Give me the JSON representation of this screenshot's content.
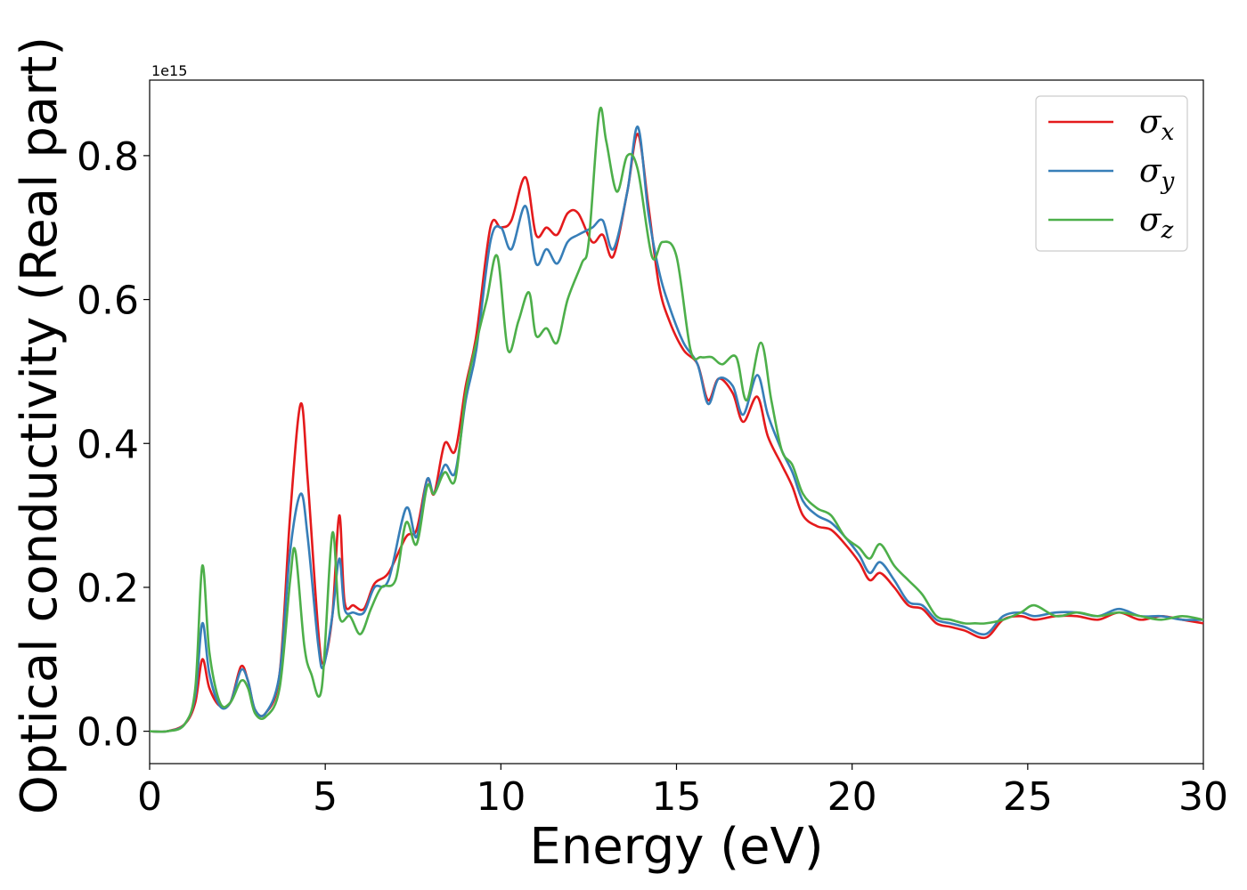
{
  "chart_data": {
    "type": "line",
    "xlabel": "Energy (eV)",
    "ylabel": "Optical conductivity (Real part)",
    "y_offset_label": "1e15",
    "xlim": [
      0,
      30
    ],
    "ylim": [
      -0.045,
      0.905
    ],
    "xticks": [
      0,
      5,
      10,
      15,
      20,
      25,
      30
    ],
    "xtick_labels": [
      "0",
      "5",
      "10",
      "15",
      "20",
      "25",
      "30"
    ],
    "yticks": [
      0.0,
      0.2,
      0.4,
      0.6,
      0.8
    ],
    "ytick_labels": [
      "0.0",
      "0.2",
      "0.4",
      "0.6",
      "0.8"
    ],
    "grid": false,
    "legend_position": "top-right",
    "series": [
      {
        "name": "σx",
        "symbol": "σ",
        "subscript": "x",
        "color": "#e41a1c",
        "points": [
          [
            0,
            0.0
          ],
          [
            0.5,
            0.0
          ],
          [
            1.0,
            0.01
          ],
          [
            1.3,
            0.04
          ],
          [
            1.5,
            0.1
          ],
          [
            1.7,
            0.06
          ],
          [
            2.0,
            0.035
          ],
          [
            2.3,
            0.04
          ],
          [
            2.6,
            0.09
          ],
          [
            2.8,
            0.07
          ],
          [
            3.0,
            0.03
          ],
          [
            3.3,
            0.025
          ],
          [
            3.7,
            0.08
          ],
          [
            4.0,
            0.3
          ],
          [
            4.3,
            0.455
          ],
          [
            4.5,
            0.35
          ],
          [
            4.8,
            0.14
          ],
          [
            4.95,
            0.095
          ],
          [
            5.2,
            0.16
          ],
          [
            5.4,
            0.3
          ],
          [
            5.55,
            0.18
          ],
          [
            5.8,
            0.175
          ],
          [
            6.1,
            0.17
          ],
          [
            6.4,
            0.205
          ],
          [
            6.8,
            0.22
          ],
          [
            7.3,
            0.27
          ],
          [
            7.6,
            0.28
          ],
          [
            7.9,
            0.35
          ],
          [
            8.1,
            0.33
          ],
          [
            8.4,
            0.4
          ],
          [
            8.7,
            0.39
          ],
          [
            9.0,
            0.48
          ],
          [
            9.3,
            0.55
          ],
          [
            9.7,
            0.7
          ],
          [
            10.0,
            0.7
          ],
          [
            10.3,
            0.71
          ],
          [
            10.7,
            0.77
          ],
          [
            11.0,
            0.69
          ],
          [
            11.3,
            0.7
          ],
          [
            11.6,
            0.69
          ],
          [
            11.9,
            0.72
          ],
          [
            12.2,
            0.72
          ],
          [
            12.6,
            0.68
          ],
          [
            12.9,
            0.69
          ],
          [
            13.2,
            0.66
          ],
          [
            13.6,
            0.75
          ],
          [
            13.9,
            0.83
          ],
          [
            14.2,
            0.73
          ],
          [
            14.5,
            0.62
          ],
          [
            14.8,
            0.57
          ],
          [
            15.2,
            0.53
          ],
          [
            15.6,
            0.51
          ],
          [
            15.9,
            0.46
          ],
          [
            16.2,
            0.49
          ],
          [
            16.6,
            0.47
          ],
          [
            16.9,
            0.43
          ],
          [
            17.3,
            0.465
          ],
          [
            17.6,
            0.41
          ],
          [
            18.0,
            0.37
          ],
          [
            18.3,
            0.34
          ],
          [
            18.6,
            0.3
          ],
          [
            19.0,
            0.285
          ],
          [
            19.4,
            0.28
          ],
          [
            19.8,
            0.26
          ],
          [
            20.2,
            0.235
          ],
          [
            20.5,
            0.21
          ],
          [
            20.8,
            0.22
          ],
          [
            21.2,
            0.2
          ],
          [
            21.6,
            0.175
          ],
          [
            22.0,
            0.17
          ],
          [
            22.4,
            0.15
          ],
          [
            22.8,
            0.145
          ],
          [
            23.2,
            0.14
          ],
          [
            23.8,
            0.13
          ],
          [
            24.3,
            0.155
          ],
          [
            24.8,
            0.16
          ],
          [
            25.2,
            0.155
          ],
          [
            25.8,
            0.16
          ],
          [
            26.4,
            0.16
          ],
          [
            27.0,
            0.155
          ],
          [
            27.6,
            0.165
          ],
          [
            28.2,
            0.155
          ],
          [
            28.8,
            0.16
          ],
          [
            29.4,
            0.155
          ],
          [
            30.0,
            0.15
          ]
        ]
      },
      {
        "name": "σy",
        "symbol": "σ",
        "subscript": "y",
        "color": "#377eb8",
        "points": [
          [
            0,
            0.0
          ],
          [
            0.5,
            0.0
          ],
          [
            1.0,
            0.01
          ],
          [
            1.3,
            0.05
          ],
          [
            1.5,
            0.15
          ],
          [
            1.7,
            0.08
          ],
          [
            2.0,
            0.035
          ],
          [
            2.3,
            0.04
          ],
          [
            2.6,
            0.085
          ],
          [
            2.8,
            0.07
          ],
          [
            3.0,
            0.03
          ],
          [
            3.3,
            0.025
          ],
          [
            3.7,
            0.08
          ],
          [
            4.0,
            0.25
          ],
          [
            4.3,
            0.33
          ],
          [
            4.5,
            0.27
          ],
          [
            4.8,
            0.12
          ],
          [
            4.95,
            0.09
          ],
          [
            5.2,
            0.16
          ],
          [
            5.4,
            0.24
          ],
          [
            5.55,
            0.17
          ],
          [
            5.8,
            0.165
          ],
          [
            6.1,
            0.165
          ],
          [
            6.4,
            0.2
          ],
          [
            6.8,
            0.21
          ],
          [
            7.3,
            0.31
          ],
          [
            7.6,
            0.27
          ],
          [
            7.9,
            0.35
          ],
          [
            8.1,
            0.33
          ],
          [
            8.4,
            0.37
          ],
          [
            8.7,
            0.36
          ],
          [
            9.0,
            0.46
          ],
          [
            9.3,
            0.53
          ],
          [
            9.7,
            0.68
          ],
          [
            10.0,
            0.7
          ],
          [
            10.3,
            0.67
          ],
          [
            10.7,
            0.73
          ],
          [
            11.0,
            0.65
          ],
          [
            11.3,
            0.67
          ],
          [
            11.6,
            0.65
          ],
          [
            11.9,
            0.68
          ],
          [
            12.2,
            0.69
          ],
          [
            12.6,
            0.7
          ],
          [
            12.9,
            0.71
          ],
          [
            13.2,
            0.67
          ],
          [
            13.6,
            0.75
          ],
          [
            13.9,
            0.84
          ],
          [
            14.2,
            0.72
          ],
          [
            14.5,
            0.64
          ],
          [
            14.8,
            0.59
          ],
          [
            15.2,
            0.54
          ],
          [
            15.6,
            0.51
          ],
          [
            15.9,
            0.455
          ],
          [
            16.2,
            0.49
          ],
          [
            16.6,
            0.48
          ],
          [
            16.9,
            0.44
          ],
          [
            17.3,
            0.495
          ],
          [
            17.6,
            0.44
          ],
          [
            18.0,
            0.39
          ],
          [
            18.3,
            0.36
          ],
          [
            18.6,
            0.32
          ],
          [
            19.0,
            0.3
          ],
          [
            19.4,
            0.29
          ],
          [
            19.8,
            0.27
          ],
          [
            20.2,
            0.245
          ],
          [
            20.5,
            0.22
          ],
          [
            20.8,
            0.235
          ],
          [
            21.2,
            0.21
          ],
          [
            21.6,
            0.18
          ],
          [
            22.0,
            0.175
          ],
          [
            22.4,
            0.155
          ],
          [
            22.8,
            0.15
          ],
          [
            23.2,
            0.145
          ],
          [
            23.8,
            0.135
          ],
          [
            24.3,
            0.16
          ],
          [
            24.8,
            0.165
          ],
          [
            25.2,
            0.16
          ],
          [
            25.8,
            0.165
          ],
          [
            26.4,
            0.165
          ],
          [
            27.0,
            0.16
          ],
          [
            27.6,
            0.17
          ],
          [
            28.2,
            0.16
          ],
          [
            28.8,
            0.16
          ],
          [
            29.4,
            0.155
          ],
          [
            30.0,
            0.155
          ]
        ]
      },
      {
        "name": "σz",
        "symbol": "σ",
        "subscript": "z",
        "color": "#4daf4a",
        "points": [
          [
            0,
            0.0
          ],
          [
            0.5,
            0.0
          ],
          [
            1.0,
            0.01
          ],
          [
            1.3,
            0.06
          ],
          [
            1.5,
            0.23
          ],
          [
            1.7,
            0.11
          ],
          [
            2.0,
            0.04
          ],
          [
            2.3,
            0.04
          ],
          [
            2.6,
            0.07
          ],
          [
            2.8,
            0.06
          ],
          [
            3.0,
            0.025
          ],
          [
            3.3,
            0.02
          ],
          [
            3.7,
            0.06
          ],
          [
            4.0,
            0.21
          ],
          [
            4.15,
            0.25
          ],
          [
            4.4,
            0.12
          ],
          [
            4.6,
            0.08
          ],
          [
            4.9,
            0.06
          ],
          [
            5.2,
            0.275
          ],
          [
            5.4,
            0.16
          ],
          [
            5.7,
            0.16
          ],
          [
            6.0,
            0.135
          ],
          [
            6.3,
            0.17
          ],
          [
            6.6,
            0.2
          ],
          [
            7.0,
            0.21
          ],
          [
            7.3,
            0.29
          ],
          [
            7.6,
            0.26
          ],
          [
            7.9,
            0.34
          ],
          [
            8.1,
            0.33
          ],
          [
            8.4,
            0.36
          ],
          [
            8.7,
            0.35
          ],
          [
            9.0,
            0.47
          ],
          [
            9.3,
            0.54
          ],
          [
            9.6,
            0.6
          ],
          [
            9.9,
            0.66
          ],
          [
            10.2,
            0.53
          ],
          [
            10.5,
            0.57
          ],
          [
            10.8,
            0.61
          ],
          [
            11.0,
            0.55
          ],
          [
            11.3,
            0.56
          ],
          [
            11.6,
            0.54
          ],
          [
            11.9,
            0.6
          ],
          [
            12.3,
            0.65
          ],
          [
            12.5,
            0.68
          ],
          [
            12.8,
            0.86
          ],
          [
            13.0,
            0.82
          ],
          [
            13.3,
            0.75
          ],
          [
            13.6,
            0.8
          ],
          [
            13.9,
            0.78
          ],
          [
            14.3,
            0.66
          ],
          [
            14.6,
            0.68
          ],
          [
            15.0,
            0.66
          ],
          [
            15.4,
            0.53
          ],
          [
            15.7,
            0.52
          ],
          [
            16.0,
            0.52
          ],
          [
            16.3,
            0.51
          ],
          [
            16.7,
            0.52
          ],
          [
            17.0,
            0.46
          ],
          [
            17.4,
            0.54
          ],
          [
            17.7,
            0.46
          ],
          [
            18.0,
            0.39
          ],
          [
            18.3,
            0.37
          ],
          [
            18.6,
            0.33
          ],
          [
            19.0,
            0.31
          ],
          [
            19.4,
            0.3
          ],
          [
            19.8,
            0.27
          ],
          [
            20.2,
            0.255
          ],
          [
            20.5,
            0.24
          ],
          [
            20.8,
            0.26
          ],
          [
            21.2,
            0.23
          ],
          [
            21.6,
            0.21
          ],
          [
            22.0,
            0.19
          ],
          [
            22.4,
            0.16
          ],
          [
            22.8,
            0.155
          ],
          [
            23.2,
            0.15
          ],
          [
            23.5,
            0.15
          ],
          [
            23.8,
            0.15
          ],
          [
            24.3,
            0.155
          ],
          [
            24.8,
            0.165
          ],
          [
            25.2,
            0.175
          ],
          [
            25.8,
            0.16
          ],
          [
            26.4,
            0.165
          ],
          [
            27.0,
            0.16
          ],
          [
            27.6,
            0.165
          ],
          [
            28.2,
            0.16
          ],
          [
            28.8,
            0.155
          ],
          [
            29.4,
            0.16
          ],
          [
            30.0,
            0.155
          ]
        ]
      }
    ]
  }
}
